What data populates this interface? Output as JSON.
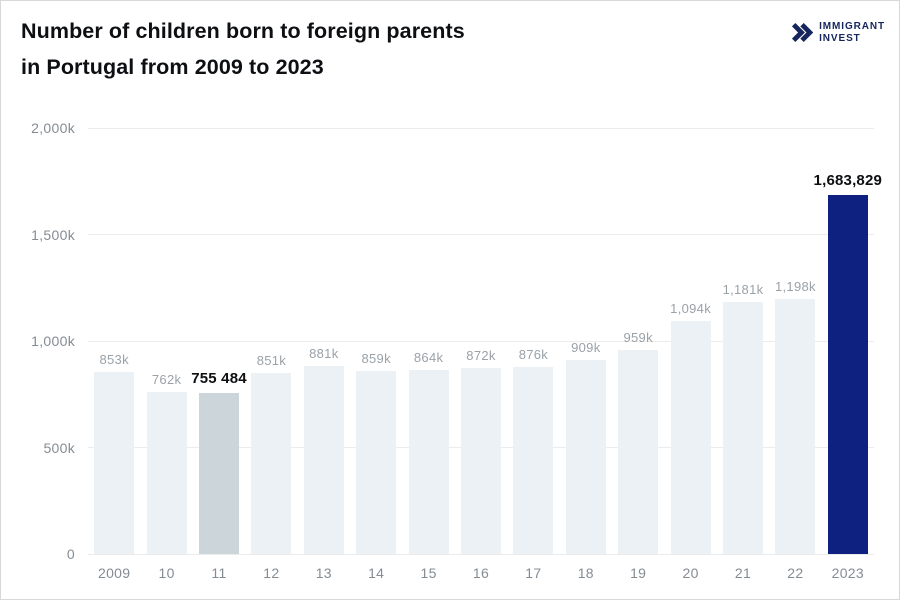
{
  "header": {
    "title_line1": "Number of children born to foreign parents",
    "title_line2": "in Portugal from 2009 to 2023",
    "logo": {
      "icon": "double-chevron-right-icon",
      "line1": "IMMIGRANT",
      "line2": "INVEST"
    }
  },
  "colors": {
    "title_text": "#0d0f12",
    "logo_navy": "#16265c",
    "bar_default": "#ecf1f6",
    "bar_highlight": "#ccd6da",
    "bar_accent": "#0e2180",
    "gridline": "#ececec",
    "axis_label": "#848c93",
    "value_label": "#9aa2a8",
    "value_label_emph": "#0d0f11",
    "frame_border": "#d8d8d8",
    "background": "#ffffff"
  },
  "chart_data": {
    "type": "bar",
    "title": "Number of children born to foreign parents in Portugal from 2009 to 2023",
    "xlabel": "",
    "ylabel": "",
    "grid": true,
    "legend": false,
    "categories": [
      "2009",
      "10",
      "11",
      "12",
      "13",
      "14",
      "15",
      "16",
      "17",
      "18",
      "19",
      "20",
      "21",
      "22",
      "2023"
    ],
    "values_thousands": [
      853,
      762,
      755.484,
      851,
      881,
      859,
      864,
      872,
      876,
      909,
      959,
      1094,
      1181,
      1198,
      1683.829
    ],
    "bar_labels": [
      "853k",
      "762k",
      "755 484",
      "851k",
      "881k",
      "859k",
      "864k",
      "872k",
      "876k",
      "909k",
      "959k",
      "1,094k",
      "1,181k",
      "1,198k",
      "1,683,829"
    ],
    "highlight_index": 2,
    "accent_index": 14,
    "emphasized_indices": [
      2,
      14
    ],
    "ylim_thousands": [
      0,
      2000
    ],
    "yticks": [
      {
        "value": 0,
        "label": "0"
      },
      {
        "value": 500,
        "label": "500k"
      },
      {
        "value": 1000,
        "label": "1,000k"
      },
      {
        "value": 1500,
        "label": "1,500k"
      },
      {
        "value": 2000,
        "label": "2,000k"
      }
    ]
  }
}
